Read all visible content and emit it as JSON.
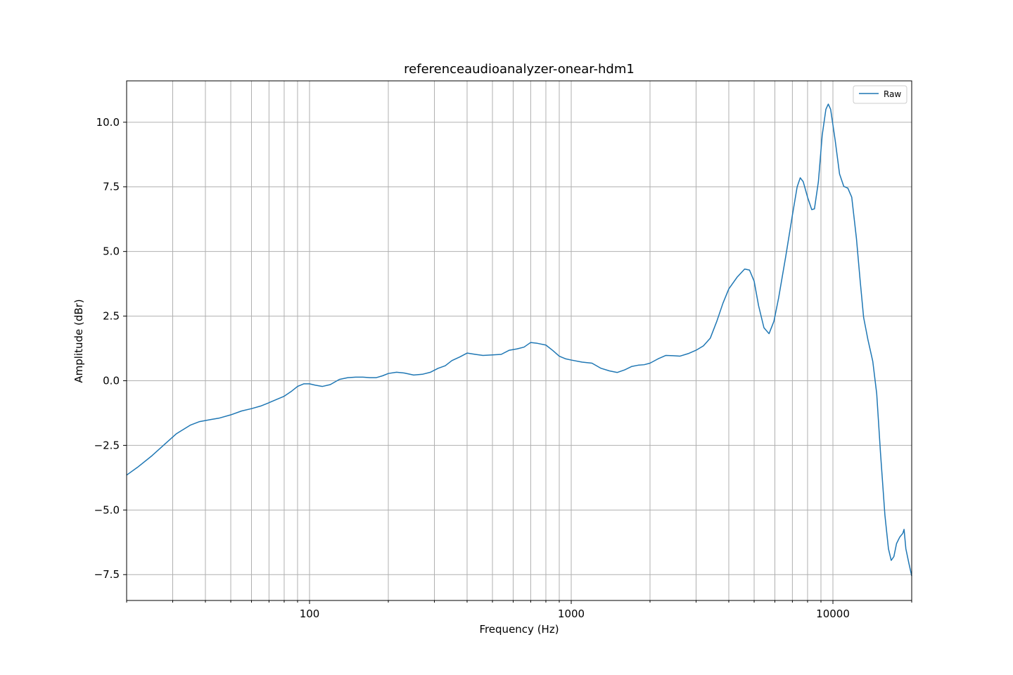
{
  "chart_data": {
    "type": "line",
    "title": "referenceaudioanalyzer-onear-hdm1",
    "xlabel": "Frequency (Hz)",
    "ylabel": "Amplitude (dBr)",
    "x_scale": "log",
    "xlim": [
      20,
      20000
    ],
    "ylim": [
      -8.5,
      11.6
    ],
    "x_ticks": [
      {
        "value": 100,
        "label": "100"
      },
      {
        "value": 1000,
        "label": "1000"
      },
      {
        "value": 10000,
        "label": "10000"
      }
    ],
    "y_ticks": [
      {
        "value": -7.5,
        "label": "−7.5"
      },
      {
        "value": -5.0,
        "label": "−5.0"
      },
      {
        "value": -2.5,
        "label": "−2.5"
      },
      {
        "value": 0.0,
        "label": "0.0"
      },
      {
        "value": 2.5,
        "label": "2.5"
      },
      {
        "value": 5.0,
        "label": "5.0"
      },
      {
        "value": 7.5,
        "label": "7.5"
      },
      {
        "value": 10.0,
        "label": "10.0"
      }
    ],
    "grid": true,
    "legend": {
      "position": "top-right",
      "entries": [
        "Raw"
      ]
    },
    "series": [
      {
        "name": "Raw",
        "color": "#1f77b4",
        "points": [
          [
            20,
            -3.65
          ],
          [
            22,
            -3.35
          ],
          [
            25,
            -2.9
          ],
          [
            28,
            -2.45
          ],
          [
            31,
            -2.05
          ],
          [
            35,
            -1.72
          ],
          [
            38,
            -1.58
          ],
          [
            42,
            -1.5
          ],
          [
            45,
            -1.45
          ],
          [
            50,
            -1.32
          ],
          [
            55,
            -1.17
          ],
          [
            60,
            -1.08
          ],
          [
            65,
            -0.98
          ],
          [
            70,
            -0.85
          ],
          [
            75,
            -0.72
          ],
          [
            80,
            -0.6
          ],
          [
            85,
            -0.42
          ],
          [
            90,
            -0.22
          ],
          [
            95,
            -0.12
          ],
          [
            100,
            -0.12
          ],
          [
            105,
            -0.17
          ],
          [
            112,
            -0.22
          ],
          [
            120,
            -0.15
          ],
          [
            130,
            0.05
          ],
          [
            140,
            0.12
          ],
          [
            150,
            0.14
          ],
          [
            160,
            0.14
          ],
          [
            170,
            0.12
          ],
          [
            180,
            0.12
          ],
          [
            190,
            0.19
          ],
          [
            200,
            0.28
          ],
          [
            215,
            0.33
          ],
          [
            230,
            0.3
          ],
          [
            250,
            0.22
          ],
          [
            270,
            0.25
          ],
          [
            290,
            0.33
          ],
          [
            310,
            0.48
          ],
          [
            330,
            0.58
          ],
          [
            350,
            0.78
          ],
          [
            375,
            0.92
          ],
          [
            400,
            1.07
          ],
          [
            430,
            1.02
          ],
          [
            460,
            0.98
          ],
          [
            500,
            1.0
          ],
          [
            540,
            1.02
          ],
          [
            580,
            1.18
          ],
          [
            620,
            1.23
          ],
          [
            660,
            1.3
          ],
          [
            700,
            1.48
          ],
          [
            740,
            1.45
          ],
          [
            800,
            1.38
          ],
          [
            850,
            1.17
          ],
          [
            900,
            0.95
          ],
          [
            950,
            0.85
          ],
          [
            1000,
            0.8
          ],
          [
            1100,
            0.72
          ],
          [
            1200,
            0.68
          ],
          [
            1300,
            0.48
          ],
          [
            1400,
            0.38
          ],
          [
            1500,
            0.32
          ],
          [
            1600,
            0.42
          ],
          [
            1700,
            0.55
          ],
          [
            1800,
            0.6
          ],
          [
            1900,
            0.62
          ],
          [
            2000,
            0.68
          ],
          [
            2150,
            0.85
          ],
          [
            2300,
            0.98
          ],
          [
            2450,
            0.97
          ],
          [
            2600,
            0.95
          ],
          [
            2800,
            1.05
          ],
          [
            3000,
            1.18
          ],
          [
            3200,
            1.35
          ],
          [
            3400,
            1.65
          ],
          [
            3600,
            2.3
          ],
          [
            3800,
            3.0
          ],
          [
            4000,
            3.55
          ],
          [
            4300,
            4.0
          ],
          [
            4600,
            4.32
          ],
          [
            4800,
            4.28
          ],
          [
            5000,
            3.85
          ],
          [
            5200,
            2.9
          ],
          [
            5450,
            2.05
          ],
          [
            5700,
            1.82
          ],
          [
            5950,
            2.3
          ],
          [
            6200,
            3.2
          ],
          [
            6600,
            4.8
          ],
          [
            7000,
            6.4
          ],
          [
            7300,
            7.5
          ],
          [
            7500,
            7.85
          ],
          [
            7700,
            7.7
          ],
          [
            8000,
            7.1
          ],
          [
            8300,
            6.62
          ],
          [
            8500,
            6.65
          ],
          [
            8800,
            7.7
          ],
          [
            9100,
            9.5
          ],
          [
            9400,
            10.5
          ],
          [
            9600,
            10.7
          ],
          [
            9800,
            10.5
          ],
          [
            10200,
            9.3
          ],
          [
            10600,
            8.0
          ],
          [
            11000,
            7.52
          ],
          [
            11400,
            7.45
          ],
          [
            11800,
            7.1
          ],
          [
            12300,
            5.5
          ],
          [
            12700,
            3.9
          ],
          [
            13100,
            2.45
          ],
          [
            13600,
            1.6
          ],
          [
            14200,
            0.75
          ],
          [
            14700,
            -0.5
          ],
          [
            15200,
            -2.8
          ],
          [
            15800,
            -5.2
          ],
          [
            16300,
            -6.5
          ],
          [
            16700,
            -6.95
          ],
          [
            17100,
            -6.8
          ],
          [
            17500,
            -6.3
          ],
          [
            18000,
            -6.05
          ],
          [
            18500,
            -5.9
          ],
          [
            18700,
            -5.75
          ],
          [
            19000,
            -6.5
          ],
          [
            19500,
            -7.05
          ],
          [
            20000,
            -7.55
          ]
        ]
      }
    ]
  }
}
